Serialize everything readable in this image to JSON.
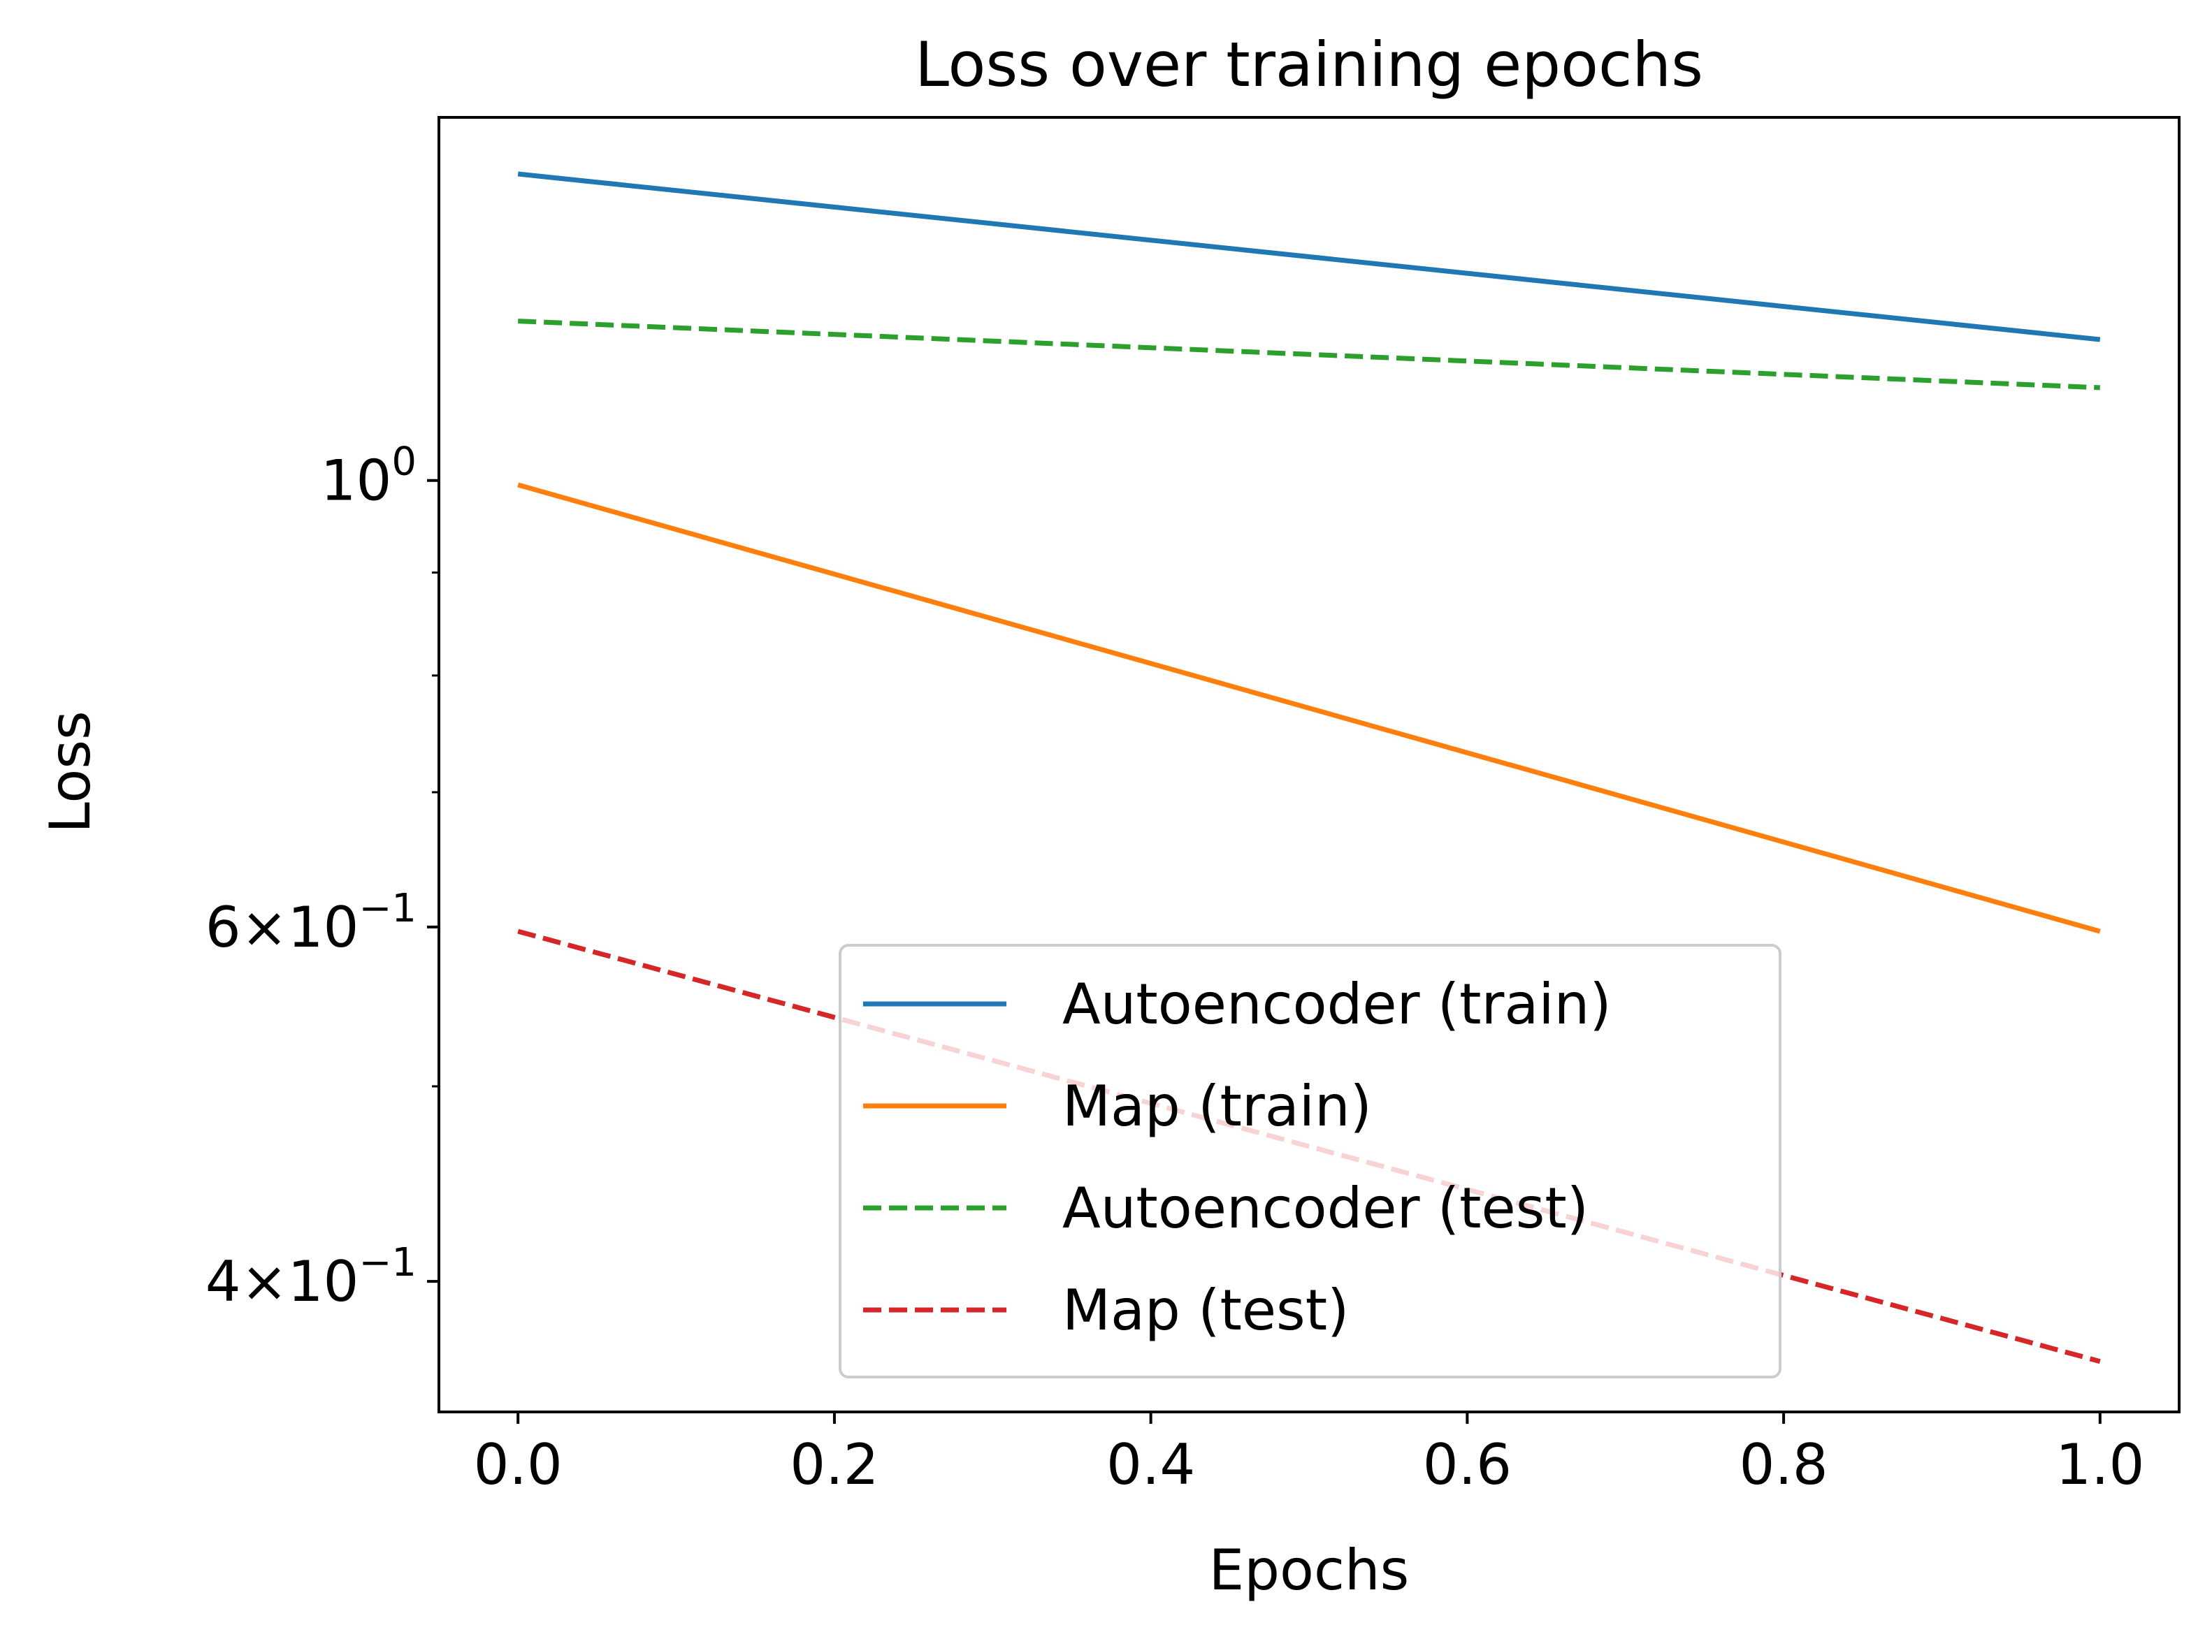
{
  "chart_data": {
    "type": "line",
    "title": "Loss over training epochs",
    "xlabel": "Epochs",
    "ylabel": "Loss",
    "xlim": [
      -0.05,
      1.05
    ],
    "ylim": [
      0.3445,
      1.515
    ],
    "yscale": "log",
    "grid": false,
    "legend_position": "lower-center",
    "x_ticks": [
      0.0,
      0.2,
      0.4,
      0.6,
      0.8,
      1.0
    ],
    "x_tick_labels": [
      "0.0",
      "0.2",
      "0.4",
      "0.6",
      "0.8",
      "1.0"
    ],
    "y_major_ticks": [
      {
        "value": 1.0,
        "mantissa": "",
        "base": "10",
        "exp": "0"
      },
      {
        "value": 0.6,
        "mantissa": "6",
        "base": "10",
        "exp": "−1"
      },
      {
        "value": 0.4,
        "mantissa": "4",
        "base": "10",
        "exp": "−1"
      }
    ],
    "y_minor_ticks": [
      0.9,
      0.8,
      0.7,
      0.5
    ],
    "series": [
      {
        "name": "Autoencoder (train)",
        "x": [
          0,
          1
        ],
        "y": [
          1.42,
          1.175
        ],
        "color": "#1f77b4",
        "dash": "solid"
      },
      {
        "name": "Map (train)",
        "x": [
          0,
          1
        ],
        "y": [
          0.995,
          0.597
        ],
        "color": "#ff7f0e",
        "dash": "solid"
      },
      {
        "name": "Autoencoder (test)",
        "x": [
          0,
          1
        ],
        "y": [
          1.2,
          1.112
        ],
        "color": "#2ca02c",
        "dash": "dashed"
      },
      {
        "name": "Map (test)",
        "x": [
          0,
          1
        ],
        "y": [
          0.597,
          0.365
        ],
        "color": "#d62728",
        "dash": "dashed"
      }
    ]
  }
}
